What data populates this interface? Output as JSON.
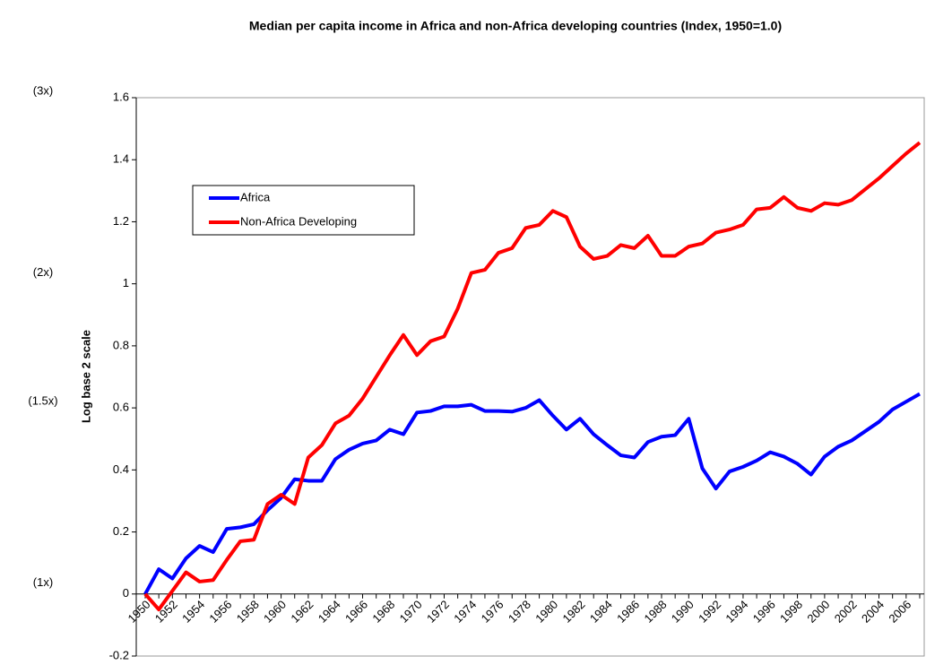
{
  "chart_data": {
    "type": "line",
    "title": "Median per capita income in Africa and non-Africa developing countries (Index, 1950=1.0)",
    "ylabel": "Log base 2 scale",
    "categories": [
      "1950",
      null,
      "1952",
      null,
      "1954",
      null,
      "1956",
      null,
      "1958",
      null,
      "1960",
      null,
      "1962",
      null,
      "1964",
      null,
      "1966",
      null,
      "1968",
      null,
      "1970",
      null,
      "1972",
      null,
      "1974",
      null,
      "1976",
      null,
      "1978",
      null,
      "1980",
      null,
      "1982",
      null,
      "1984",
      null,
      "1986",
      null,
      "1988",
      null,
      "1990",
      null,
      "1992",
      null,
      "1994",
      null,
      "1996",
      null,
      "1998",
      null,
      "2000",
      null,
      "2002",
      null,
      "2004",
      null,
      "2006",
      null
    ],
    "series": [
      {
        "name": "Africa",
        "color": "#0000ff",
        "values": [
          0,
          0.08,
          0.05,
          0.115,
          0.155,
          0.135,
          0.21,
          0.215,
          0.225,
          0.27,
          0.31,
          0.37,
          0.365,
          0.365,
          0.435,
          0.465,
          0.485,
          0.495,
          0.53,
          0.515,
          0.585,
          0.59,
          0.605,
          0.605,
          0.61,
          0.59,
          0.59,
          0.588,
          0.6,
          0.625,
          0.575,
          0.53,
          0.565,
          0.515,
          0.48,
          0.447,
          0.44,
          0.49,
          0.507,
          0.512,
          0.565,
          0.405,
          0.34,
          0.395,
          0.41,
          0.43,
          0.457,
          0.443,
          0.42,
          0.385,
          0.443,
          0.475,
          0.495,
          0.525,
          0.555,
          0.595,
          0.62,
          0.645
        ]
      },
      {
        "name": "Non-Africa Developing",
        "color": "#ff0000",
        "values": [
          0,
          -0.05,
          0.01,
          0.07,
          0.04,
          0.045,
          0.11,
          0.17,
          0.175,
          0.29,
          0.32,
          0.29,
          0.44,
          0.48,
          0.55,
          0.575,
          0.63,
          0.7,
          0.77,
          0.835,
          0.77,
          0.815,
          0.83,
          0.92,
          1.035,
          1.045,
          1.1,
          1.115,
          1.18,
          1.19,
          1.235,
          1.215,
          1.12,
          1.08,
          1.09,
          1.125,
          1.115,
          1.155,
          1.09,
          1.09,
          1.12,
          1.13,
          1.165,
          1.175,
          1.19,
          1.24,
          1.245,
          1.28,
          1.245,
          1.235,
          1.26,
          1.255,
          1.27,
          1.305,
          1.34,
          1.38,
          1.42,
          1.455
        ]
      }
    ],
    "ylim": [
      -0.2,
      1.6
    ],
    "yticks": [
      -0.2,
      0,
      0.2,
      0.4,
      0.6,
      0.8,
      1,
      1.2,
      1.4,
      1.6
    ],
    "multiple_labels": [
      {
        "value": 1.585,
        "label": "(3x)"
      },
      {
        "value": 1,
        "label": "(2x)"
      },
      {
        "value": 0.585,
        "label": "(1.5x)"
      },
      {
        "value": 0,
        "label": "(1x)"
      }
    ],
    "legend": "upper left"
  }
}
